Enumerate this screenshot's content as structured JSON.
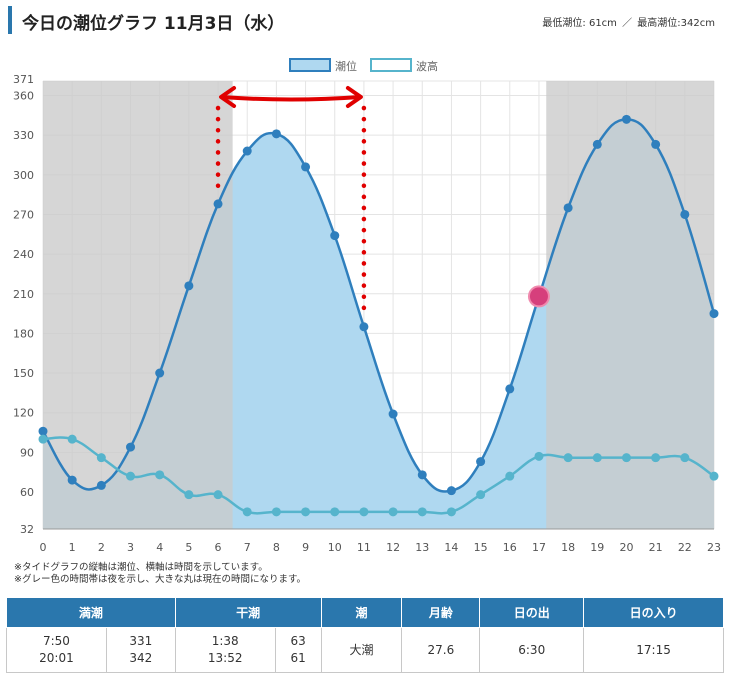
{
  "header": {
    "title": "今日の潮位グラフ 11月3日（水）",
    "min_label": "最低潮位: 61cm",
    "separator": "／",
    "max_label": "最高潮位:342cm"
  },
  "chart_data": {
    "type": "area",
    "x": [
      0,
      1,
      2,
      3,
      4,
      5,
      6,
      7,
      8,
      9,
      10,
      11,
      12,
      13,
      14,
      15,
      16,
      17,
      18,
      19,
      20,
      21,
      22,
      23
    ],
    "series": [
      {
        "name": "潮位",
        "values": [
          106,
          69,
          65,
          94,
          150,
          216,
          278,
          318,
          331,
          306,
          254,
          185,
          119,
          73,
          61,
          83,
          138,
          208,
          275,
          323,
          342,
          323,
          270,
          195
        ]
      },
      {
        "name": "波高",
        "values": [
          100,
          100,
          86,
          72,
          73,
          58,
          58,
          45,
          45,
          45,
          45,
          45,
          45,
          45,
          45,
          58,
          72,
          87,
          86,
          86,
          86,
          86,
          86,
          72
        ]
      }
    ],
    "x_ticks": [
      "0",
      "1",
      "2",
      "3",
      "4",
      "5",
      "6",
      "7",
      "8",
      "9",
      "10",
      "11",
      "12",
      "13",
      "14",
      "15",
      "16",
      "17",
      "18",
      "19",
      "20",
      "21",
      "22",
      "23"
    ],
    "y_ticks": [
      32,
      60,
      90,
      120,
      150,
      180,
      210,
      240,
      270,
      300,
      330,
      360,
      371
    ],
    "ylim": [
      32,
      371
    ],
    "xlim": [
      0,
      23
    ],
    "night_shading": [
      [
        0,
        6.5
      ],
      [
        17.25,
        23
      ]
    ],
    "current_time_point": {
      "x": 17,
      "y": 208
    },
    "annotation": {
      "from_x": 6,
      "to_x": 11
    },
    "legend_position": "top-center",
    "grid": true,
    "colors": {
      "tide_line": "#2f7fbd",
      "tide_fill": "#afd8f0",
      "wave_line": "#56b4cc",
      "night": "#cbcbcb",
      "current_marker": "#d63f7c",
      "annotation": "#e00000"
    }
  },
  "notes": [
    "※タイドグラフの縦軸は潮位、横軸は時間を示しています。",
    "※グレー色の時間帯は夜を示し、大きな丸は現在の時間になります。"
  ],
  "table": {
    "headers": [
      "満潮",
      "干潮",
      "潮",
      "月齢",
      "日の出",
      "日の入り"
    ],
    "high_times": [
      "7:50",
      "20:01"
    ],
    "high_levels": [
      "331",
      "342"
    ],
    "low_times": [
      "1:38",
      "13:52"
    ],
    "low_levels": [
      "63",
      "61"
    ],
    "tide_type": "大潮",
    "moon_age": "27.6",
    "sunrise": "6:30",
    "sunset": "17:15"
  }
}
